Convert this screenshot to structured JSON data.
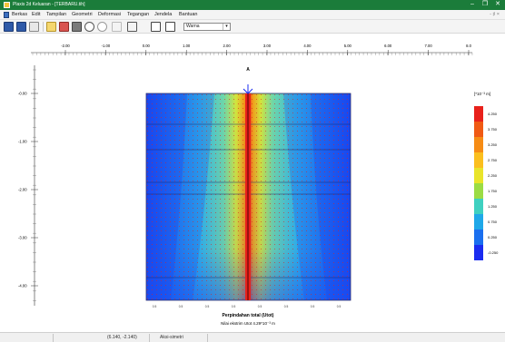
{
  "window": {
    "title": "Plaxis 2d Keluaran - [TERBARU.tih]",
    "minimize_glyph": "–",
    "maximize_glyph": "❐",
    "close_glyph": "✕"
  },
  "menu": {
    "items": [
      "Berkas",
      "Edit",
      "Tampilan",
      "Geometri",
      "Deformasi",
      "Tegangan",
      "Jendela",
      "Bantuan"
    ],
    "right_text": "- ♯ ×"
  },
  "toolbar": {
    "icons": [
      "open-icon",
      "save-icon",
      "copy-icon",
      "refresh-icon",
      "move-icon",
      "print-icon",
      "zoom-in-icon",
      "zoom-out-icon",
      "line-icon",
      "cross-section-icon",
      "table-icon",
      "chart-icon"
    ],
    "display_mode": "Warna"
  },
  "plot": {
    "x_ticks": [
      "-2.00",
      "-1.00",
      "0.00",
      "1.00",
      "2.00",
      "3.00",
      "4.00",
      "5.00",
      "6.00",
      "7.00",
      "8.0"
    ],
    "y_ticks": [
      "-0.00",
      "-1.00",
      "-2.00",
      "-3.00",
      "-4.00"
    ],
    "section_label": "A",
    "bottom_ticks": [
      "0.5",
      "0.5",
      "0.5",
      "0.5",
      "0.5",
      "0.5",
      "0.5",
      "0.5"
    ],
    "title": "Perpindahan total (Utot)",
    "subtitle": "Nilai ekstrim Utot 4.29*10⁻³ m",
    "legend_unit": "[*10⁻³ m]",
    "legend_values": [
      "4.250",
      "3.750",
      "3.250",
      "2.750",
      "2.250",
      "1.750",
      "1.250",
      "0.750",
      "0.250",
      "-0.250"
    ],
    "legend_colors": [
      "#e8211b",
      "#f05a14",
      "#f68c15",
      "#fbbf1e",
      "#e9e42a",
      "#9bdc44",
      "#3fd0c0",
      "#1fa8e8",
      "#1a6fef",
      "#1a2cf0"
    ]
  },
  "status": {
    "coordinates": "(6.140, -2.140)",
    "mode": "Aksi-simetri"
  }
}
